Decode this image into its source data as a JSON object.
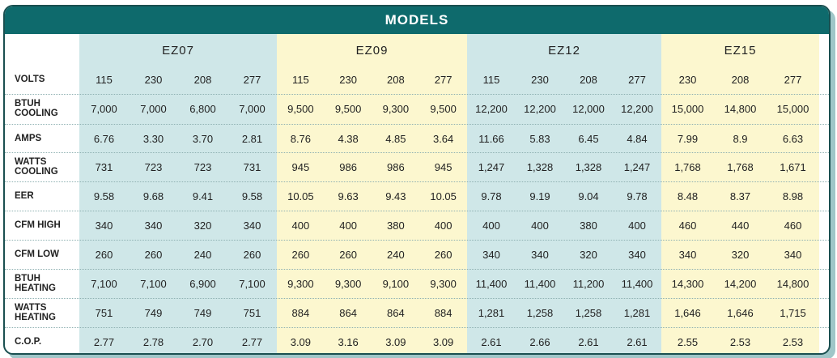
{
  "header": {
    "title": "MODELS"
  },
  "table": {
    "models": [
      {
        "name": "EZ07",
        "volts": [
          "115",
          "230",
          "208",
          "277"
        ]
      },
      {
        "name": "EZ09",
        "volts": [
          "115",
          "230",
          "208",
          "277"
        ]
      },
      {
        "name": "EZ12",
        "volts": [
          "115",
          "230",
          "208",
          "277"
        ]
      },
      {
        "name": "EZ15",
        "volts": [
          "230",
          "208",
          "277"
        ]
      }
    ],
    "volts_label": "VOLTS",
    "rows": [
      {
        "label": "BTUH COOLING",
        "cells": [
          "7,000",
          "7,000",
          "6,800",
          "7,000",
          "9,500",
          "9,500",
          "9,300",
          "9,500",
          "12,200",
          "12,200",
          "12,000",
          "12,200",
          "15,000",
          "14,800",
          "15,000"
        ]
      },
      {
        "label": "AMPS",
        "cells": [
          "6.76",
          "3.30",
          "3.70",
          "2.81",
          "8.76",
          "4.38",
          "4.85",
          "3.64",
          "11.66",
          "5.83",
          "6.45",
          "4.84",
          "7.99",
          "8.9",
          "6.63"
        ]
      },
      {
        "label": "WATTS COOLING",
        "cells": [
          "731",
          "723",
          "723",
          "731",
          "945",
          "986",
          "986",
          "945",
          "1,247",
          "1,328",
          "1,328",
          "1,247",
          "1,768",
          "1,768",
          "1,671"
        ]
      },
      {
        "label": "EER",
        "cells": [
          "9.58",
          "9.68",
          "9.41",
          "9.58",
          "10.05",
          "9.63",
          "9.43",
          "10.05",
          "9.78",
          "9.19",
          "9.04",
          "9.78",
          "8.48",
          "8.37",
          "8.98"
        ]
      },
      {
        "label": "CFM HIGH",
        "cells": [
          "340",
          "340",
          "320",
          "340",
          "400",
          "400",
          "380",
          "400",
          "400",
          "400",
          "380",
          "400",
          "460",
          "440",
          "460"
        ]
      },
      {
        "label": "CFM LOW",
        "cells": [
          "260",
          "260",
          "240",
          "260",
          "260",
          "260",
          "240",
          "260",
          "340",
          "340",
          "320",
          "340",
          "340",
          "320",
          "340"
        ]
      },
      {
        "label": "BTUH HEATING",
        "cells": [
          "7,100",
          "7,100",
          "6,900",
          "7,100",
          "9,300",
          "9,300",
          "9,100",
          "9,300",
          "11,400",
          "11,400",
          "11,200",
          "11,400",
          "14,300",
          "14,200",
          "14,800"
        ]
      },
      {
        "label": "WATTS HEATING",
        "cells": [
          "751",
          "749",
          "749",
          "751",
          "884",
          "864",
          "864",
          "884",
          "1,281",
          "1,258",
          "1,258",
          "1,281",
          "1,646",
          "1,646",
          "1,715"
        ]
      },
      {
        "label": "C.O.P.",
        "cells": [
          "2.77",
          "2.78",
          "2.70",
          "2.77",
          "3.09",
          "3.16",
          "3.09",
          "3.09",
          "2.61",
          "2.66",
          "2.61",
          "2.61",
          "2.55",
          "2.53",
          "2.53"
        ]
      }
    ]
  }
}
